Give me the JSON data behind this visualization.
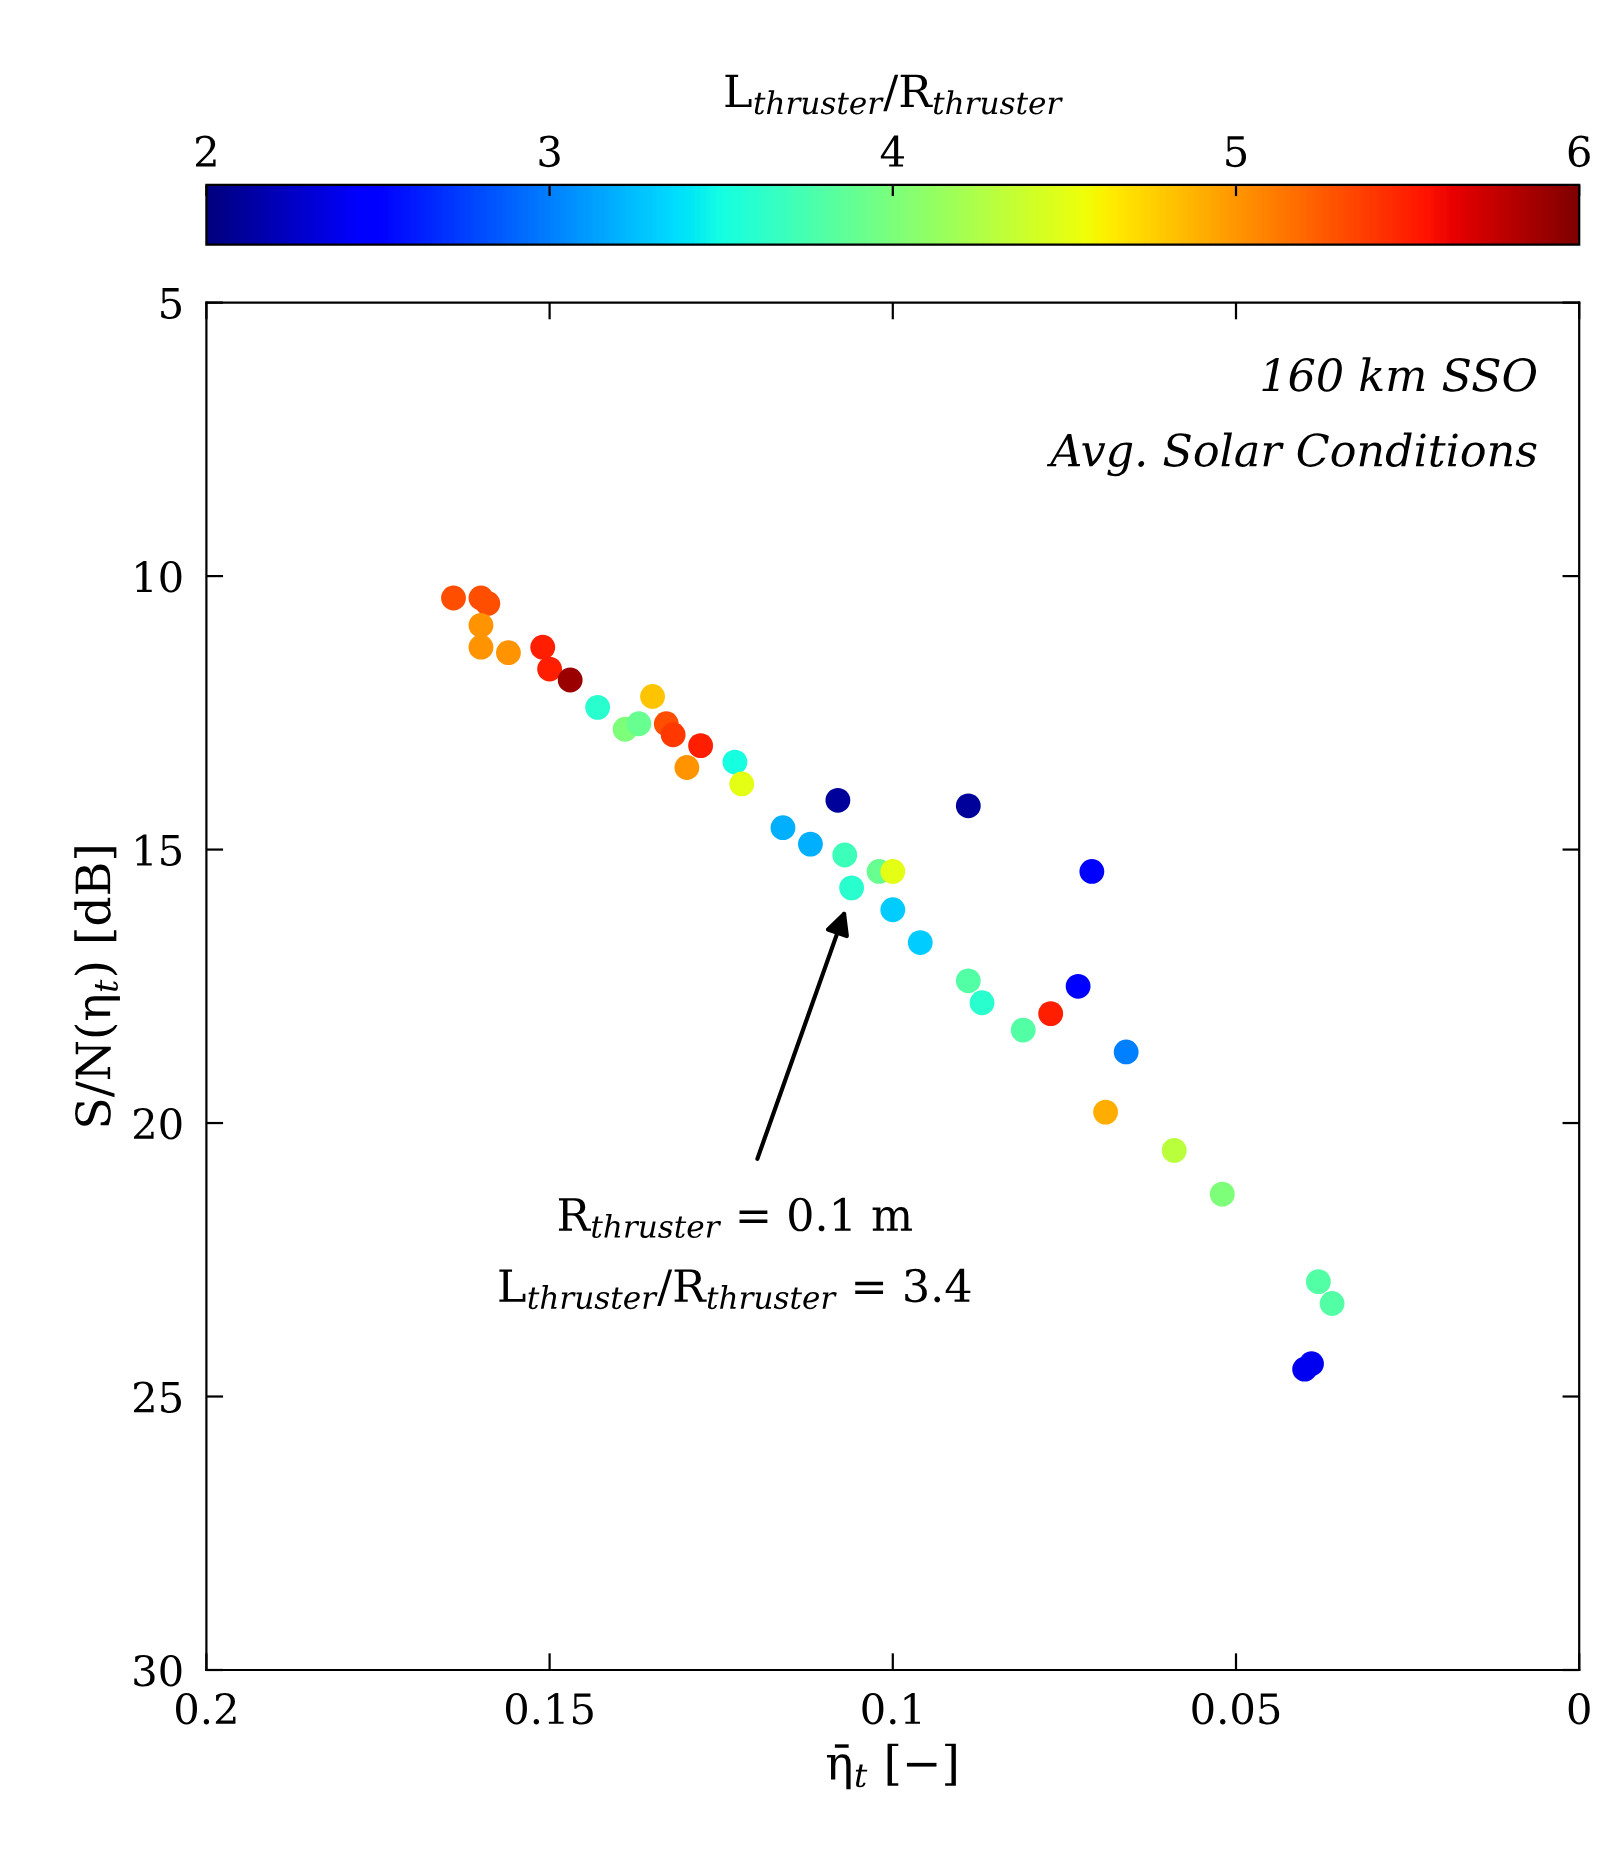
{
  "chart_data": {
    "type": "scatter",
    "xlabel": "η̄$_{t}$ [−]",
    "ylabel": "S/N(η$_{t}$) [dB]",
    "clabel": "L$_{thruster}$/R$_{thruster}$",
    "xlim": [
      0.2,
      0
    ],
    "xticks": [
      0.2,
      0.15,
      0.1,
      0.05,
      0
    ],
    "ylim": [
      30,
      5
    ],
    "yticks": [
      5,
      10,
      15,
      20,
      25,
      30
    ],
    "clim": [
      2,
      6
    ],
    "cticks": [
      2,
      3,
      4,
      5,
      6
    ],
    "grid": false,
    "marker": "circle",
    "x": [
      0.164,
      0.16,
      0.159,
      0.16,
      0.16,
      0.156,
      0.151,
      0.15,
      0.147,
      0.143,
      0.139,
      0.137,
      0.135,
      0.133,
      0.132,
      0.128,
      0.13,
      0.123,
      0.122,
      0.108,
      0.089,
      0.116,
      0.112,
      0.107,
      0.102,
      0.1,
      0.106,
      0.1,
      0.096,
      0.089,
      0.087,
      0.081,
      0.077,
      0.071,
      0.073,
      0.066,
      0.069,
      0.059,
      0.052,
      0.038,
      0.036,
      0.04,
      0.039
    ],
    "values": [
      10.4,
      10.4,
      10.5,
      10.9,
      11.3,
      11.4,
      11.3,
      11.7,
      11.9,
      12.4,
      12.8,
      12.7,
      12.2,
      12.7,
      12.9,
      13.1,
      13.5,
      13.4,
      13.8,
      14.1,
      14.2,
      14.6,
      14.9,
      15.1,
      15.4,
      15.4,
      15.7,
      16.1,
      16.7,
      17.4,
      17.8,
      18.3,
      18.0,
      15.4,
      17.5,
      18.7,
      19.8,
      20.5,
      21.3,
      22.9,
      23.3,
      24.5,
      24.4
    ],
    "cvalues": [
      5.3,
      5.3,
      5.3,
      5.0,
      5.0,
      5.0,
      5.5,
      5.5,
      5.9,
      3.6,
      4.0,
      3.9,
      4.8,
      5.3,
      5.4,
      5.5,
      5.0,
      3.5,
      4.5,
      2.1,
      2.1,
      3.2,
      3.2,
      3.7,
      3.9,
      4.5,
      3.6,
      3.3,
      3.3,
      3.8,
      3.6,
      3.8,
      5.5,
      2.5,
      2.5,
      3.0,
      4.9,
      4.3,
      4.0,
      3.8,
      3.8,
      2.4,
      2.4
    ],
    "annotations": [
      "160 km SSO",
      "Avg. Solar Conditions",
      "R$_{thruster}$ = 0.1 m",
      "L$_{thruster}$/R$_{thruster}$ = 3.4"
    ]
  }
}
